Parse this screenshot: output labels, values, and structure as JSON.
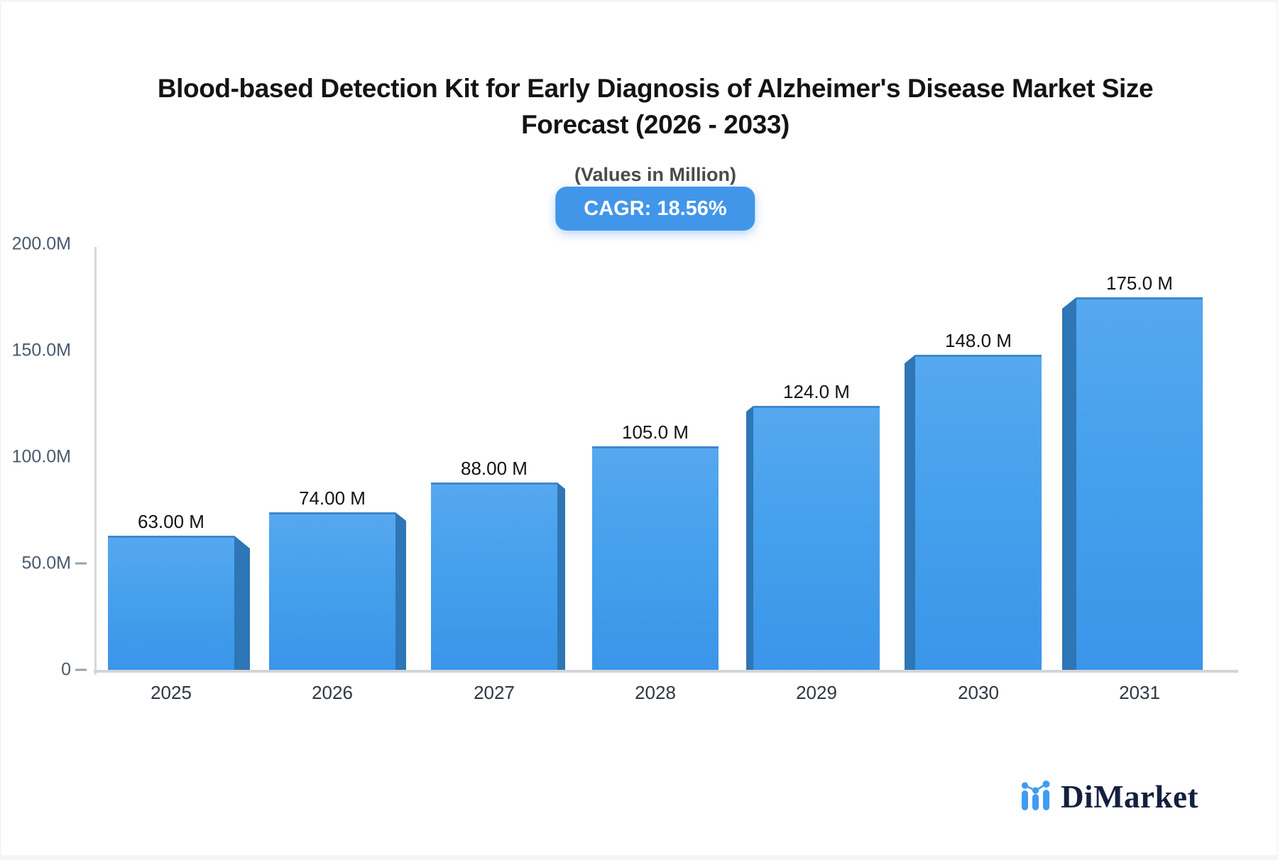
{
  "header": {
    "title_line1": "Blood-based Detection Kit for Early Diagnosis of Alzheimer's Disease Market Size",
    "title_line2": "Forecast (2026 - 2033)",
    "subtitle": "(Values in Million)",
    "cagr_label": "CAGR: 18.56%"
  },
  "chart_data": {
    "type": "bar",
    "title": "Blood-based Detection Kit for Early Diagnosis of Alzheimer's Disease Market Size Forecast (2026 - 2033)",
    "subtitle": "(Values in Million)",
    "unit": "Million",
    "cagr_percent": 18.56,
    "categories": [
      "2025",
      "2026",
      "2027",
      "2028",
      "2029",
      "2030",
      "2031"
    ],
    "values": [
      63,
      74,
      88,
      105,
      124,
      148,
      175
    ],
    "value_labels": [
      "63.00 M",
      "74.00 M",
      "88.00 M",
      "105.0 M",
      "124.0 M",
      "148.0 M",
      "175.0 M"
    ],
    "ylim": [
      0,
      200
    ],
    "y_ticks": [
      {
        "label": "200.0M",
        "value": 200,
        "dash": false
      },
      {
        "label": "150.0M",
        "value": 150,
        "dash": false
      },
      {
        "label": "100.0M",
        "value": 100,
        "dash": false
      },
      {
        "label": "50.0M",
        "value": 50,
        "dash": true
      },
      {
        "label": "0",
        "value": 0,
        "dash": true
      }
    ],
    "grid": false,
    "legend": "none"
  },
  "colors": {
    "bar_top": "#56a8ef",
    "bar_bottom": "#3b95e9",
    "bar_edge": "#3e87cd",
    "bar_side": "#2e76b5",
    "badge_background": "#4196ea",
    "badge_text": "#ffffff",
    "axis_line": "#d6d8db",
    "tick_text": "#4a5a6e",
    "logo_blue": "#3f9bf4",
    "logo_navy": "#13203f"
  },
  "logo": {
    "text": "DiMarket",
    "icon": "bar-line-chart-icon"
  }
}
